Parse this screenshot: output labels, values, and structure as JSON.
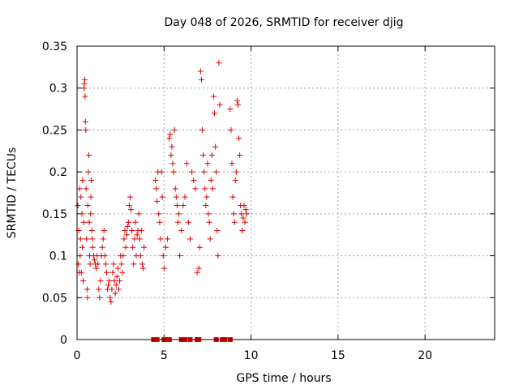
{
  "chart_data": {
    "type": "scatter",
    "title": "Day 048 of 2026, SRMTID for receiver djig",
    "xlabel": "GPS time / hours",
    "ylabel": "SRMTID / TECUs",
    "xlim": [
      0,
      24
    ],
    "ylim": [
      0,
      0.35
    ],
    "x_ticks": [
      0,
      5,
      10,
      15,
      20
    ],
    "y_ticks": [
      0,
      0.05,
      0.1,
      0.15,
      0.2,
      0.25,
      0.3,
      0.35
    ],
    "x_tick_labels": [
      "0",
      "5",
      "10",
      "15",
      "20"
    ],
    "y_tick_labels": [
      "0",
      "0.05",
      "0.1",
      "0.15",
      "0.2",
      "0.25",
      "0.3",
      "0.35"
    ],
    "grid": true,
    "colors": {
      "series": "#dd0000",
      "grid": "#a0a0a0",
      "axes": "#000000"
    },
    "series": [
      {
        "marker": "plus",
        "points": [
          [
            0.05,
            0.16
          ],
          [
            0.08,
            0.09
          ],
          [
            0.1,
            0.13
          ],
          [
            0.12,
            0.08
          ],
          [
            0.15,
            0.18
          ],
          [
            0.18,
            0.1
          ],
          [
            0.2,
            0.12
          ],
          [
            0.22,
            0.17
          ],
          [
            0.25,
            0.08
          ],
          [
            0.28,
            0.15
          ],
          [
            0.3,
            0.11
          ],
          [
            0.32,
            0.19
          ],
          [
            0.35,
            0.07
          ],
          [
            0.38,
            0.14
          ],
          [
            0.4,
            0.3
          ],
          [
            0.42,
            0.305
          ],
          [
            0.44,
            0.31
          ],
          [
            0.46,
            0.29
          ],
          [
            0.48,
            0.26
          ],
          [
            0.5,
            0.25
          ],
          [
            0.52,
            0.18
          ],
          [
            0.55,
            0.12
          ],
          [
            0.58,
            0.06
          ],
          [
            0.6,
            0.05
          ],
          [
            0.62,
            0.16
          ],
          [
            0.65,
            0.2
          ],
          [
            0.68,
            0.22
          ],
          [
            0.7,
            0.14
          ],
          [
            0.72,
            0.1
          ],
          [
            0.75,
            0.09
          ],
          [
            0.78,
            0.15
          ],
          [
            0.8,
            0.17
          ],
          [
            0.82,
            0.19
          ],
          [
            0.85,
            0.13
          ],
          [
            0.88,
            0.12
          ],
          [
            0.9,
            0.11
          ],
          [
            0.95,
            0.1
          ],
          [
            1.0,
            0.095
          ],
          [
            1.05,
            0.09
          ],
          [
            1.1,
            0.085
          ],
          [
            1.15,
            0.1
          ],
          [
            1.2,
            0.09
          ],
          [
            1.25,
            0.06
          ],
          [
            1.3,
            0.05
          ],
          [
            1.35,
            0.07
          ],
          [
            1.4,
            0.1
          ],
          [
            1.45,
            0.11
          ],
          [
            1.5,
            0.12
          ],
          [
            1.55,
            0.13
          ],
          [
            1.6,
            0.1
          ],
          [
            1.65,
            0.09
          ],
          [
            1.7,
            0.08
          ],
          [
            1.75,
            0.06
          ],
          [
            1.8,
            0.065
          ],
          [
            1.85,
            0.07
          ],
          [
            1.9,
            0.05
          ],
          [
            1.95,
            0.045
          ],
          [
            2.0,
            0.06
          ],
          [
            2.05,
            0.08
          ],
          [
            2.1,
            0.09
          ],
          [
            2.15,
            0.07
          ],
          [
            2.2,
            0.055
          ],
          [
            2.25,
            0.065
          ],
          [
            2.3,
            0.075
          ],
          [
            2.35,
            0.085
          ],
          [
            2.4,
            0.06
          ],
          [
            2.45,
            0.07
          ],
          [
            2.5,
            0.1
          ],
          [
            2.55,
            0.09
          ],
          [
            2.6,
            0.08
          ],
          [
            2.65,
            0.1
          ],
          [
            2.7,
            0.12
          ],
          [
            2.75,
            0.13
          ],
          [
            2.8,
            0.11
          ],
          [
            2.85,
            0.125
          ],
          [
            2.9,
            0.135
          ],
          [
            2.95,
            0.14
          ],
          [
            3.0,
            0.16
          ],
          [
            3.05,
            0.17
          ],
          [
            3.1,
            0.155
          ],
          [
            3.15,
            0.13
          ],
          [
            3.2,
            0.11
          ],
          [
            3.25,
            0.09
          ],
          [
            3.3,
            0.12
          ],
          [
            3.35,
            0.14
          ],
          [
            3.4,
            0.1
          ],
          [
            3.45,
            0.125
          ],
          [
            3.5,
            0.13
          ],
          [
            3.55,
            0.15
          ],
          [
            3.6,
            0.12
          ],
          [
            3.65,
            0.1
          ],
          [
            3.7,
            0.13
          ],
          [
            3.75,
            0.09
          ],
          [
            3.8,
            0.085
          ],
          [
            3.85,
            0.11
          ],
          [
            4.5,
            0.19
          ],
          [
            4.55,
            0.18
          ],
          [
            4.6,
            0.165
          ],
          [
            4.65,
            0.2
          ],
          [
            4.7,
            0.15
          ],
          [
            4.75,
            0.14
          ],
          [
            4.8,
            0.12
          ],
          [
            4.85,
            0.2
          ],
          [
            4.9,
            0.17
          ],
          [
            4.95,
            0.1
          ],
          [
            5.0,
            0.085
          ],
          [
            5.1,
            0.11
          ],
          [
            5.2,
            0.12
          ],
          [
            5.3,
            0.24
          ],
          [
            5.35,
            0.245
          ],
          [
            5.4,
            0.22
          ],
          [
            5.45,
            0.23
          ],
          [
            5.5,
            0.21
          ],
          [
            5.55,
            0.2
          ],
          [
            5.6,
            0.25
          ],
          [
            5.65,
            0.18
          ],
          [
            5.7,
            0.17
          ],
          [
            5.75,
            0.16
          ],
          [
            5.8,
            0.14
          ],
          [
            5.85,
            0.15
          ],
          [
            5.9,
            0.1
          ],
          [
            6.0,
            0.13
          ],
          [
            6.1,
            0.16
          ],
          [
            6.2,
            0.17
          ],
          [
            6.3,
            0.21
          ],
          [
            6.4,
            0.14
          ],
          [
            6.5,
            0.12
          ],
          [
            6.6,
            0.2
          ],
          [
            6.7,
            0.19
          ],
          [
            6.8,
            0.18
          ],
          [
            6.9,
            0.08
          ],
          [
            7.0,
            0.085
          ],
          [
            7.05,
            0.11
          ],
          [
            7.1,
            0.32
          ],
          [
            7.15,
            0.31
          ],
          [
            7.2,
            0.25
          ],
          [
            7.25,
            0.22
          ],
          [
            7.3,
            0.2
          ],
          [
            7.35,
            0.18
          ],
          [
            7.4,
            0.16
          ],
          [
            7.45,
            0.17
          ],
          [
            7.5,
            0.21
          ],
          [
            7.55,
            0.15
          ],
          [
            7.6,
            0.14
          ],
          [
            7.65,
            0.12
          ],
          [
            7.7,
            0.19
          ],
          [
            7.75,
            0.22
          ],
          [
            7.8,
            0.18
          ],
          [
            7.85,
            0.29
          ],
          [
            7.9,
            0.27
          ],
          [
            7.95,
            0.23
          ],
          [
            8.0,
            0.2
          ],
          [
            8.05,
            0.13
          ],
          [
            8.1,
            0.1
          ],
          [
            8.15,
            0.33
          ],
          [
            8.2,
            0.28
          ],
          [
            8.8,
            0.275
          ],
          [
            8.85,
            0.25
          ],
          [
            8.9,
            0.21
          ],
          [
            8.95,
            0.17
          ],
          [
            9.0,
            0.15
          ],
          [
            9.05,
            0.14
          ],
          [
            9.1,
            0.19
          ],
          [
            9.15,
            0.2
          ],
          [
            9.2,
            0.285
          ],
          [
            9.25,
            0.28
          ],
          [
            9.3,
            0.24
          ],
          [
            9.35,
            0.22
          ],
          [
            9.4,
            0.16
          ],
          [
            9.45,
            0.15
          ],
          [
            9.5,
            0.13
          ],
          [
            9.55,
            0.145
          ],
          [
            9.6,
            0.16
          ],
          [
            9.65,
            0.14
          ],
          [
            9.7,
            0.155
          ],
          [
            9.75,
            0.15
          ]
        ]
      },
      {
        "marker": "square",
        "points": [
          [
            4.4,
            0.0
          ],
          [
            4.5,
            0.0
          ],
          [
            4.6,
            0.0
          ],
          [
            5.0,
            0.0
          ],
          [
            5.2,
            0.0
          ],
          [
            5.3,
            0.0
          ],
          [
            6.0,
            0.0
          ],
          [
            6.2,
            0.0
          ],
          [
            6.5,
            0.0
          ],
          [
            6.9,
            0.0
          ],
          [
            7.0,
            0.0
          ],
          [
            8.0,
            0.0
          ],
          [
            8.35,
            0.0
          ],
          [
            8.5,
            0.0
          ],
          [
            8.8,
            0.0
          ]
        ]
      }
    ]
  }
}
